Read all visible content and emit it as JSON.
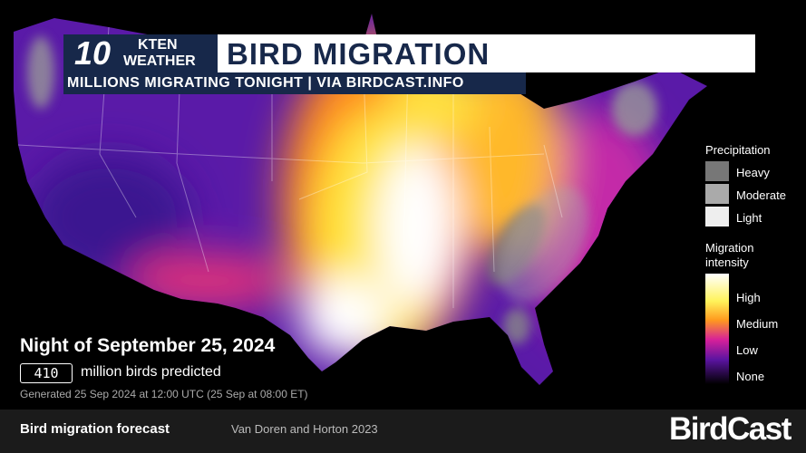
{
  "header": {
    "logo_number": "10",
    "logo_line1": "KTEN",
    "logo_line2": "WEATHER",
    "title": "BIRD MIGRATION",
    "subtitle": "MILLIONS MIGRATING TONIGHT | VIA BIRDCAST.INFO"
  },
  "legend": {
    "precipitation_title": "Precipitation",
    "precipitation_levels": [
      "Heavy",
      "Moderate",
      "Light"
    ],
    "intensity_title": "Migration intensity",
    "intensity_levels": [
      "High",
      "Medium",
      "Low",
      "None"
    ]
  },
  "summary": {
    "night": "Night of September 25, 2024",
    "birds_count": 410,
    "birds_text": "million birds predicted",
    "generated": "Generated 25 Sep 2024 at 12:00 UTC (25 Sep at 08:00 ET)"
  },
  "footer": {
    "label": "Bird migration forecast",
    "credit": "Van Doren and Horton 2023",
    "brand": "BirdCast"
  }
}
